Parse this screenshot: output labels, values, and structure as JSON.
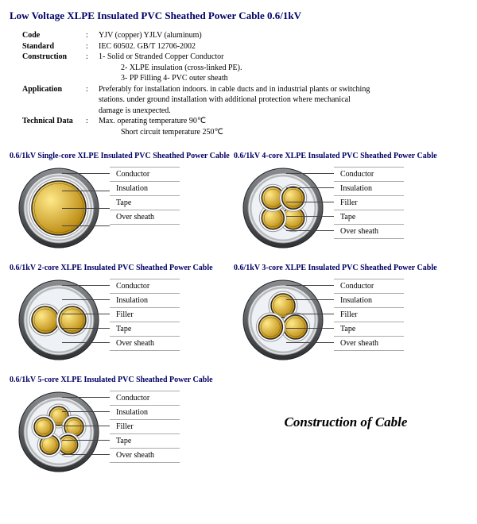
{
  "page": {
    "title": "Low Voltage XLPE Insulated PVC Sheathed Power Cable    0.6/1kV",
    "construction_title": "Construction of Cable"
  },
  "specs": [
    {
      "label": "Code",
      "lines": [
        "YJV (copper) YJLV (aluminum)"
      ]
    },
    {
      "label": "Standard",
      "lines": [
        "IEC 60502. GB/T 12706-2002"
      ]
    },
    {
      "label": "Construction",
      "lines": [
        "1- Solid or Stranded Copper Conductor",
        "2- XLPE insulation (cross-linked PE).",
        "3- PP Filling     4- PVC outer sheath"
      ]
    },
    {
      "label": "Application",
      "lines": [
        "Preferably for installation indoors. in cable ducts and in industrial plants or switching",
        "stations. under ground installation with additional protection where mechanical",
        "damage is unexpected."
      ]
    },
    {
      "label": "Technical Data",
      "lines": [
        "Max. operating temperature 90℃",
        "Short circuit temperature 250℃"
      ]
    }
  ],
  "cables": [
    {
      "title": "0.6/1kV Single-core XLPE Insulated PVC Sheathed Power Cable",
      "cores": 1,
      "labels": [
        "Conductor",
        "Insulation",
        "Tape",
        "Over sheath"
      ]
    },
    {
      "title": "0.6/1kV 4-core XLPE Insulated PVC Sheathed Power Cable",
      "cores": 4,
      "labels": [
        "Conductor",
        "Insulation",
        "Filler",
        "Tape",
        "Over sheath"
      ]
    },
    {
      "title": "0.6/1kV 2-core XLPE Insulated PVC Sheathed Power Cable",
      "cores": 2,
      "labels": [
        "Conductor",
        "Insulation",
        "Filler",
        "Tape",
        "Over sheath"
      ]
    },
    {
      "title": "0.6/1kV 3-core XLPE Insulated PVC Sheathed Power Cable",
      "cores": 3,
      "labels": [
        "Conductor",
        "Insulation",
        "Filler",
        "Tape",
        "Over sheath"
      ]
    },
    {
      "title": "0.6/1kV 5-core XLPE Insulated PVC Sheathed Power Cable",
      "cores": 5,
      "labels": [
        "Conductor",
        "Insulation",
        "Filler",
        "Tape",
        "Over sheath"
      ]
    }
  ],
  "colors": {
    "sheath": "#5a5e62",
    "tape_light": "#e6e7e9",
    "tape_mid": "#b8bbbe",
    "insulation": "#ffffff",
    "conductor_hi": "#ffe98a",
    "conductor_lo": "#b8860b",
    "ring": "#2a2a2a",
    "filler": "#dadcde"
  }
}
